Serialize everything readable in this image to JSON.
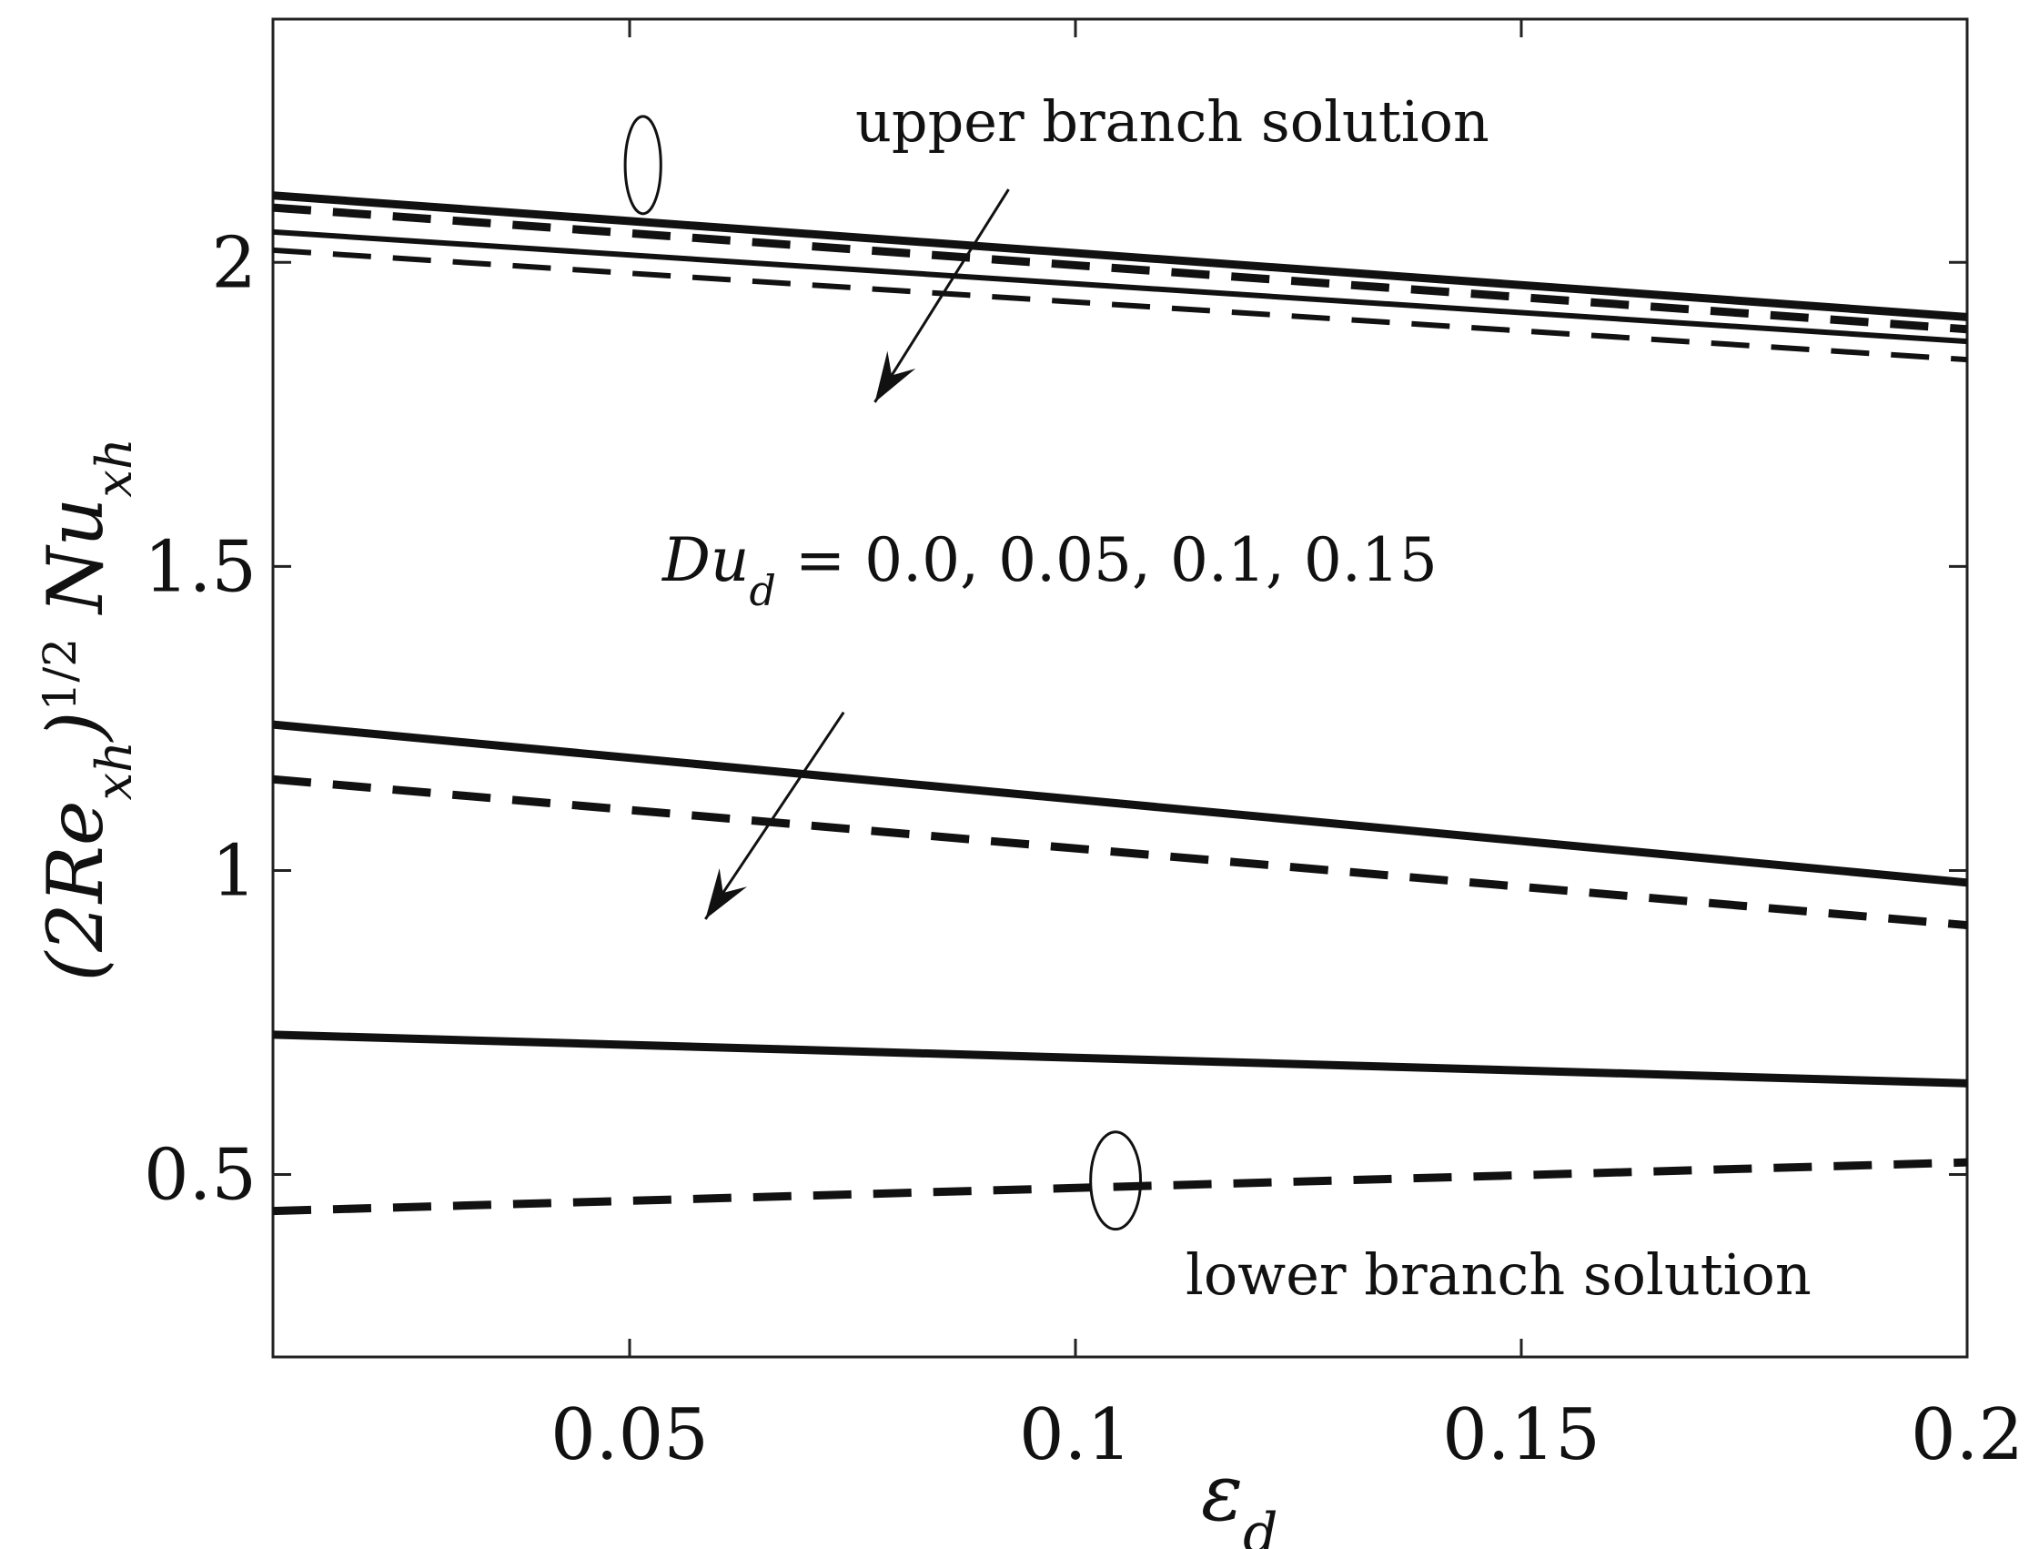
{
  "chart_data": {
    "type": "line",
    "title": "",
    "xlabel": "ε_d",
    "ylabel": "(2Re_{x_h})^{1/2} Nu_{x_h}",
    "xlim": [
      0.01,
      0.2
    ],
    "ylim": [
      0.2,
      2.4
    ],
    "grid": false,
    "x_ticks": [
      0.05,
      0.1,
      0.15,
      0.2
    ],
    "x_tick_labels": [
      "0.05",
      "0.1",
      "0.15",
      "0.2"
    ],
    "y_ticks": [
      0.5,
      1,
      1.5,
      2
    ],
    "y_tick_labels": [
      "0.5",
      "1",
      "1.5",
      "2"
    ],
    "series": [
      {
        "branch": "upper",
        "style": "solid",
        "width": "thick",
        "x": [
          0.01,
          0.2
        ],
        "y": [
          2.11,
          1.91
        ]
      },
      {
        "branch": "upper",
        "style": "dashed",
        "width": "thick",
        "x": [
          0.01,
          0.2
        ],
        "y": [
          2.09,
          1.89
        ]
      },
      {
        "branch": "upper",
        "style": "solid",
        "width": "thin",
        "x": [
          0.01,
          0.2
        ],
        "y": [
          2.05,
          1.87
        ]
      },
      {
        "branch": "upper",
        "style": "dashed",
        "width": "thin",
        "x": [
          0.01,
          0.2
        ],
        "y": [
          2.02,
          1.84
        ]
      },
      {
        "branch": "middle",
        "style": "solid",
        "width": "thick",
        "x": [
          0.01,
          0.2
        ],
        "y": [
          1.24,
          0.98
        ]
      },
      {
        "branch": "middle",
        "style": "dashed",
        "width": "thick",
        "x": [
          0.01,
          0.2
        ],
        "y": [
          1.15,
          0.91
        ]
      },
      {
        "branch": "lower",
        "style": "solid",
        "width": "thick",
        "x": [
          0.01,
          0.2
        ],
        "y": [
          0.73,
          0.65
        ]
      },
      {
        "branch": "lower",
        "style": "dashed",
        "width": "thick",
        "x": [
          0.01,
          0.2
        ],
        "y": [
          0.44,
          0.52
        ]
      }
    ],
    "annotations": [
      {
        "id": "upper",
        "text": "upper branch solution"
      },
      {
        "id": "param",
        "text": "Du_d = 0.0, 0.05, 0.1, 0.15"
      },
      {
        "id": "lower",
        "text": "lower branch solution"
      }
    ],
    "arrows": [
      {
        "from": [
          0.0925,
          2.12
        ],
        "to": [
          0.0775,
          1.77
        ]
      },
      {
        "from": [
          0.074,
          1.26
        ],
        "to": [
          0.0585,
          0.92
        ]
      }
    ],
    "ellipses": [
      {
        "cx": 0.0515,
        "cy": 2.16,
        "rx_data": 0.002,
        "ry_data": 0.08
      },
      {
        "cx": 0.1045,
        "cy": 0.49,
        "rx_data": 0.0028,
        "ry_data": 0.08
      }
    ]
  }
}
